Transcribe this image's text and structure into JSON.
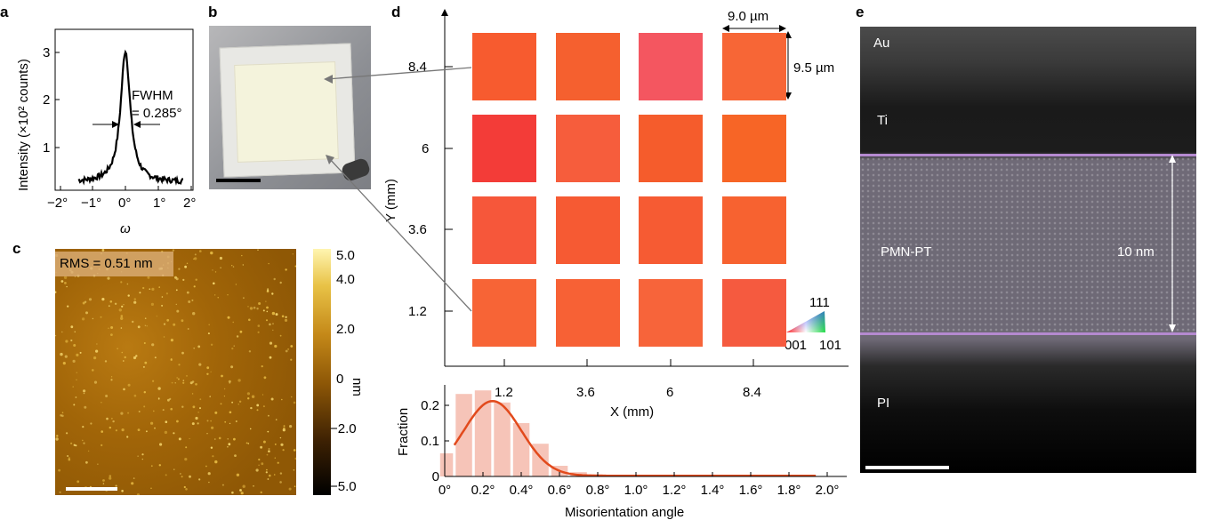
{
  "panels": {
    "a": {
      "label": "a",
      "ylabel": "Intensity (×10² counts)",
      "xlabel": "ω",
      "yticks": [
        "1",
        "2",
        "3"
      ],
      "xticks": [
        "−2°",
        "−1°",
        "0°",
        "1°",
        "2°"
      ],
      "annotation_line1": "FWHM",
      "annotation_line2": "= 0.285°"
    },
    "b": {
      "label": "b"
    },
    "c": {
      "label": "c",
      "rms": "RMS = 0.51 nm",
      "colorbar_ticks": [
        "5.0",
        "4.0",
        "2.0",
        "0",
        "−2.0",
        "−5.0"
      ],
      "colorbar_unit": "nm"
    },
    "d": {
      "label": "d",
      "width_label": "9.0 µm",
      "height_label": "9.5 µm",
      "yaxis_label": "Y (mm)",
      "xaxis_label": "X (mm)",
      "ytick_labels": [
        "8.4",
        "6",
        "3.6",
        "1.2"
      ],
      "xtick_labels": [
        "1.2",
        "3.6",
        "6",
        "8.4"
      ],
      "ipf": {
        "top": "111",
        "left": "001",
        "right": "101"
      },
      "tile_colors": [
        [
          "#f75b2f",
          "#f5602f",
          "#f45660",
          "#f76636"
        ],
        [
          "#f33c38",
          "#f65d3c",
          "#f55c2c",
          "#f76526"
        ],
        [
          "#f6573a",
          "#f65a33",
          "#f65b33",
          "#f76230"
        ],
        [
          "#f76436",
          "#f76135",
          "#f7643a",
          "#f55a3f"
        ]
      ]
    },
    "e": {
      "label": "e",
      "layers": [
        "Au",
        "Ti",
        "PMN-PT",
        "PI"
      ],
      "thickness": "10 nm"
    }
  },
  "chart_data": {
    "type": "bar",
    "title": "",
    "xlabel": "Misorientation angle",
    "ylabel": "Fraction",
    "ylim": [
      0,
      0.25
    ],
    "yticks": [
      "0",
      "0.1",
      "0.2"
    ],
    "xticks": [
      "0°",
      "0.2°",
      "0.4°",
      "0.6°",
      "0.8°",
      "1.0°",
      "1.2°",
      "1.4°",
      "1.6°",
      "1.8°",
      "2.0°"
    ],
    "bin_width_deg": 0.1,
    "bin_centers": [
      0.0,
      0.1,
      0.2,
      0.3,
      0.4,
      0.5,
      0.6,
      0.7,
      0.8,
      0.9,
      1.0,
      1.1,
      1.2,
      1.3,
      1.4,
      1.5,
      1.6,
      1.7,
      1.8,
      1.9
    ],
    "values": [
      0.065,
      0.232,
      0.242,
      0.208,
      0.15,
      0.092,
      0.03,
      0.012,
      0.006,
      0.004,
      0.003,
      0.003,
      0.003,
      0.002,
      0.002,
      0.002,
      0.002,
      0.002,
      0.002,
      0.002
    ],
    "fit": {
      "type": "gaussian",
      "peak_x": 0.25,
      "peak_y": 0.21,
      "sigma": 0.15,
      "color": "#e24a1c"
    },
    "bar_color": "#f6c4b8",
    "xlim": [
      0,
      2.0
    ]
  }
}
